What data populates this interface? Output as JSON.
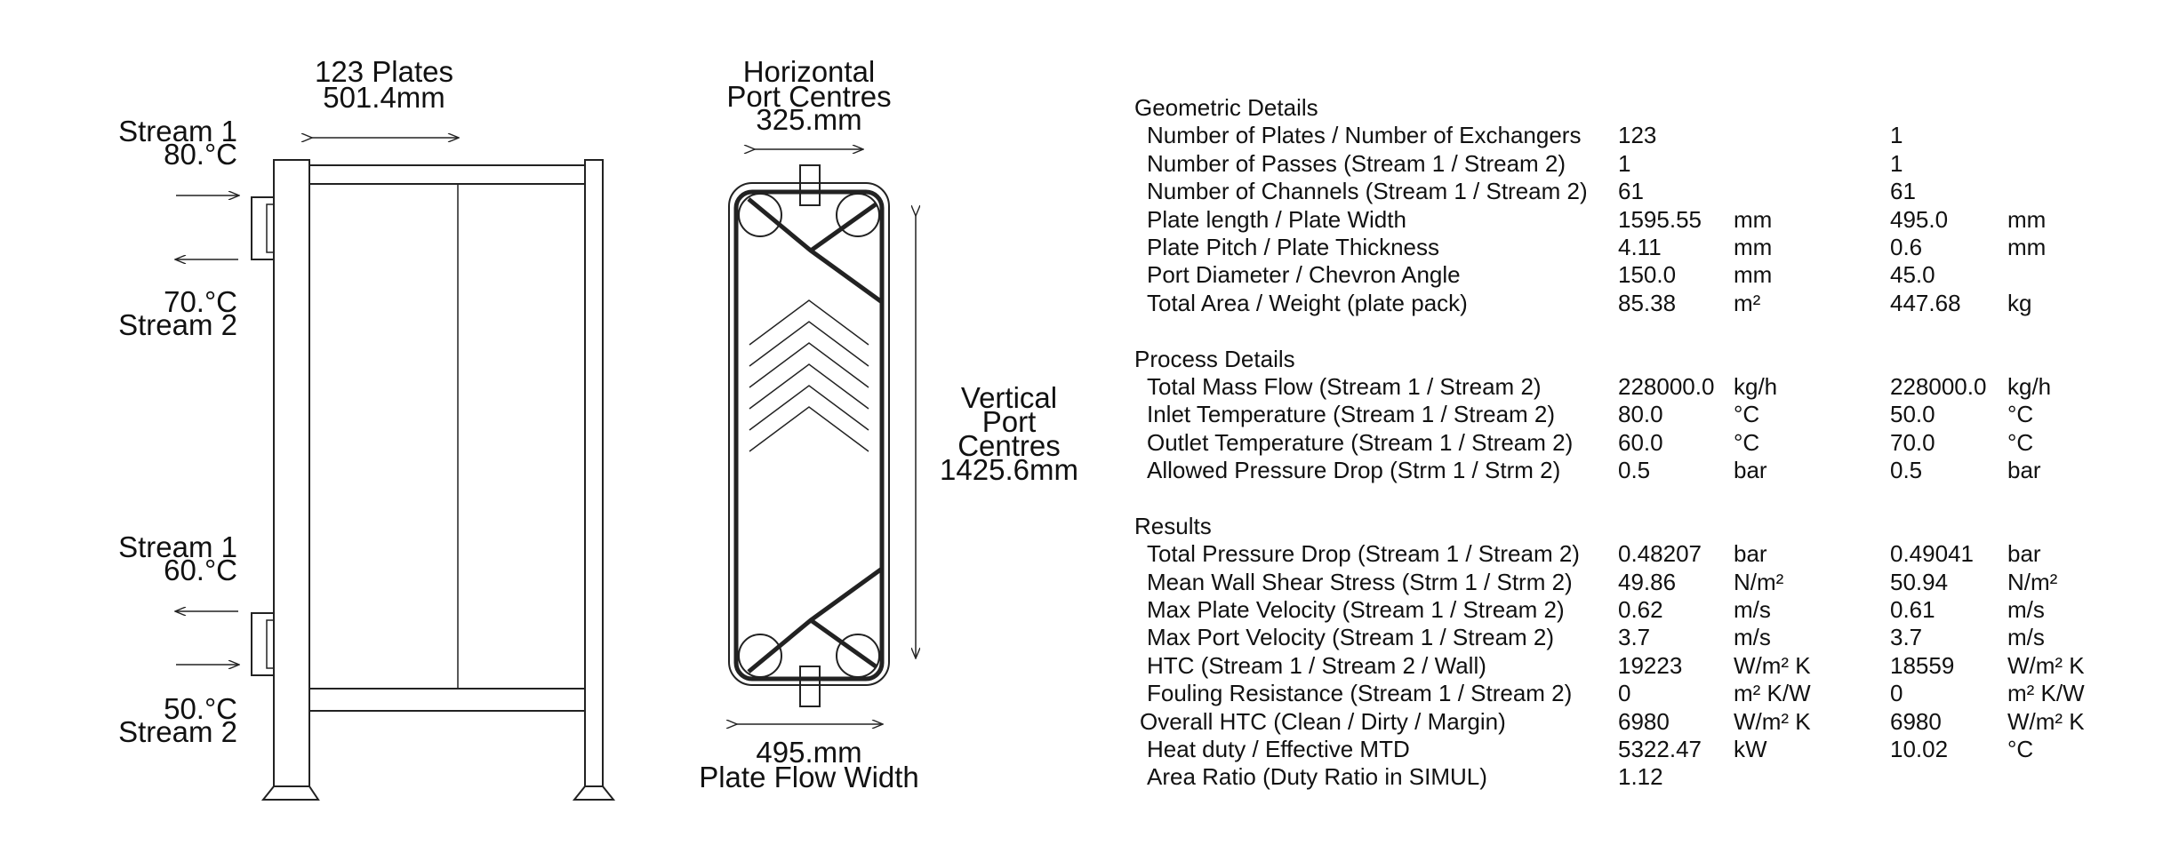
{
  "frame_diagram": {
    "plates_label": "123 Plates",
    "pack_length": "501.4mm",
    "top_stream1_name": "Stream 1",
    "top_stream1_temp": "80.°C",
    "top_stream2_temp": "70.°C",
    "top_stream2_name": "Stream 2",
    "bottom_stream1_name": "Stream 1",
    "bottom_stream1_temp": "60.°C",
    "bottom_stream2_temp": "50.°C",
    "bottom_stream2_name": "Stream 2"
  },
  "plate_diagram": {
    "horizontal_label_1": "Horizontal",
    "horizontal_label_2": "Port Centres",
    "horizontal_value": "325.mm",
    "vertical_label_1": "Vertical",
    "vertical_label_2": "Port",
    "vertical_label_3": "Centres",
    "vertical_value": "1425.6mm",
    "width_value": "495.mm",
    "width_label": "Plate Flow Width"
  },
  "sections": [
    {
      "title": "Geometric Details",
      "rows": [
        {
          "label": "Number of Plates / Number of Exchangers",
          "v1": "123",
          "u1": "",
          "v2": "1",
          "u2": ""
        },
        {
          "label": "Number of Passes (Stream 1 / Stream 2)",
          "v1": "1",
          "u1": "",
          "v2": "1",
          "u2": ""
        },
        {
          "label": "Number of Channels (Stream 1 / Stream 2)",
          "v1": "61",
          "u1": "",
          "v2": "61",
          "u2": ""
        },
        {
          "label": "Plate length / Plate Width",
          "v1": "1595.55",
          "u1": "mm",
          "v2": "495.0",
          "u2": "mm"
        },
        {
          "label": "Plate Pitch / Plate Thickness",
          "v1": "4.11",
          "u1": "mm",
          "v2": "0.6",
          "u2": "mm"
        },
        {
          "label": "Port Diameter / Chevron Angle",
          "v1": "150.0",
          "u1": "mm",
          "v2": "45.0",
          "u2": ""
        },
        {
          "label": "Total Area / Weight (plate pack)",
          "v1": "85.38",
          "u1": "m²",
          "v2": "447.68",
          "u2": "kg"
        }
      ]
    },
    {
      "title": "Process Details",
      "rows": [
        {
          "label": "Total Mass Flow (Stream 1 / Stream 2)",
          "v1": "228000.0",
          "u1": "kg/h",
          "v2": "228000.0",
          "u2": "kg/h"
        },
        {
          "label": "Inlet Temperature (Stream 1 / Stream 2)",
          "v1": "80.0",
          "u1": "°C",
          "v2": "50.0",
          "u2": "°C"
        },
        {
          "label": "Outlet Temperature (Stream 1 / Stream 2)",
          "v1": "60.0",
          "u1": "°C",
          "v2": "70.0",
          "u2": "°C"
        },
        {
          "label": "Allowed Pressure Drop (Strm 1 / Strm 2)",
          "v1": "0.5",
          "u1": "bar",
          "v2": "0.5",
          "u2": "bar"
        }
      ]
    },
    {
      "title": "Results",
      "rows": [
        {
          "label": "Total Pressure Drop (Stream 1 / Stream 2)",
          "v1": "0.48207",
          "u1": "bar",
          "v2": "0.49041",
          "u2": "bar"
        },
        {
          "label": "Mean Wall Shear Stress (Strm 1 / Strm 2)",
          "v1": "49.86",
          "u1": "N/m²",
          "v2": "50.94",
          "u2": "N/m²"
        },
        {
          "label": "Max Plate Velocity (Stream 1 / Stream 2)",
          "v1": "0.62",
          "u1": "m/s",
          "v2": "0.61",
          "u2": "m/s"
        },
        {
          "label": "Max Port Velocity (Stream 1 / Stream 2)",
          "v1": "3.7",
          "u1": "m/s",
          "v2": "3.7",
          "u2": "m/s"
        },
        {
          "label": "HTC (Stream 1 / Stream 2 / Wall)",
          "v1": "19223",
          "u1": "W/m² K",
          "v2": "18559",
          "u2": "W/m² K"
        },
        {
          "label": "Fouling Resistance (Stream 1 / Stream 2)",
          "v1": "0",
          "u1": "m² K/W",
          "v2": "0",
          "u2": "m² K/W"
        },
        {
          "label": "Overall HTC (Clean / Dirty / Margin)",
          "v1": "6980",
          "u1": "W/m² K",
          "v2": "6980",
          "u2": "W/m² K"
        },
        {
          "label": "Heat duty / Effective MTD",
          "v1": "5322.47",
          "u1": "kW",
          "v2": "10.02",
          "u2": "°C"
        },
        {
          "label": "Area Ratio (Duty Ratio in SIMUL)",
          "v1": "1.12",
          "u1": "",
          "v2": "",
          "u2": ""
        }
      ]
    }
  ]
}
